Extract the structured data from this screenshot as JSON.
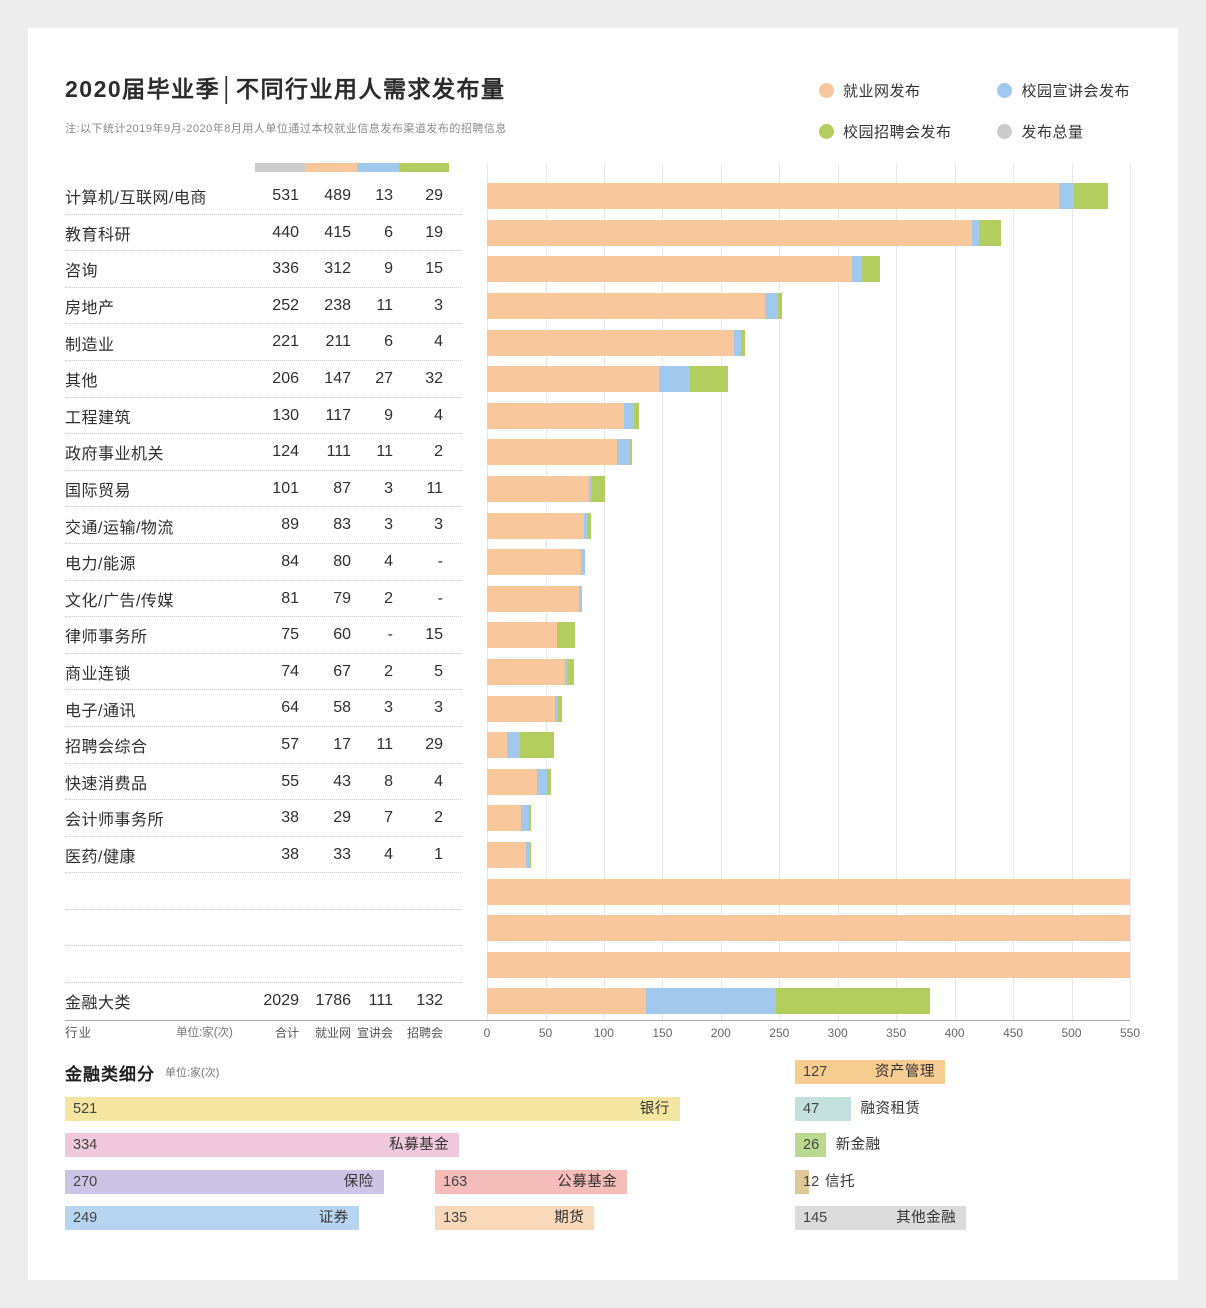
{
  "header": {
    "title": "2020届毕业季│不同行业用人需求发布量",
    "note": "注:以下统计2019年9月-2020年8月用人单位通过本校就业信息发布渠道发布的招聘信息"
  },
  "legend": {
    "items": [
      {
        "name": "web",
        "label": "就业网发布",
        "color": "#F8C89C"
      },
      {
        "name": "info",
        "label": "校园宣讲会发布",
        "color": "#A0C9ED"
      },
      {
        "name": "fair",
        "label": "校园招聘会发布",
        "color": "#B4CD5F"
      },
      {
        "name": "total",
        "label": "发布总量",
        "color": "#CBCBCB"
      }
    ]
  },
  "chart_data": {
    "type": "bar",
    "orientation": "horizontal",
    "stacked": true,
    "title": "不同行业用人需求发布量",
    "unit": "单位:家(次)",
    "axis": {
      "min": 0,
      "max": 550,
      "ticks": [
        0,
        50,
        100,
        150,
        200,
        250,
        300,
        350,
        400,
        450,
        500,
        550
      ],
      "grid": true
    },
    "colors": {
      "web": "#F8C89C",
      "info": "#A0C9ED",
      "fair": "#B4CD5F",
      "total": "#CBCBCB"
    },
    "columns": [
      "合计",
      "就业网",
      "宣讲会",
      "招聘会"
    ],
    "rows": [
      {
        "label": "计算机/互联网/电商",
        "total": 531,
        "web": 489,
        "info": 13,
        "fair": 29
      },
      {
        "label": "教育科研",
        "total": 440,
        "web": 415,
        "info": 6,
        "fair": 19
      },
      {
        "label": "咨询",
        "total": 336,
        "web": 312,
        "info": 9,
        "fair": 15
      },
      {
        "label": "房地产",
        "total": 252,
        "web": 238,
        "info": 11,
        "fair": 3
      },
      {
        "label": "制造业",
        "total": 221,
        "web": 211,
        "info": 6,
        "fair": 4
      },
      {
        "label": "其他",
        "total": 206,
        "web": 147,
        "info": 27,
        "fair": 32
      },
      {
        "label": "工程建筑",
        "total": 130,
        "web": 117,
        "info": 9,
        "fair": 4
      },
      {
        "label": "政府事业机关",
        "total": 124,
        "web": 111,
        "info": 11,
        "fair": 2
      },
      {
        "label": "国际贸易",
        "total": 101,
        "web": 87,
        "info": 3,
        "fair": 11
      },
      {
        "label": "交通/运输/物流",
        "total": 89,
        "web": 83,
        "info": 3,
        "fair": 3
      },
      {
        "label": "电力/能源",
        "total": 84,
        "web": 80,
        "info": 4,
        "fair": "-"
      },
      {
        "label": "文化/广告/传媒",
        "total": 81,
        "web": 79,
        "info": 2,
        "fair": "-"
      },
      {
        "label": "律师事务所",
        "total": 75,
        "web": 60,
        "info": "-",
        "fair": 15
      },
      {
        "label": "商业连锁",
        "total": 74,
        "web": 67,
        "info": 2,
        "fair": 5
      },
      {
        "label": "电子/通讯",
        "total": 64,
        "web": 58,
        "info": 3,
        "fair": 3
      },
      {
        "label": "招聘会综合",
        "total": 57,
        "web": 17,
        "info": 11,
        "fair": 29
      },
      {
        "label": "快速消费品",
        "total": 55,
        "web": 43,
        "info": 8,
        "fair": 4
      },
      {
        "label": "会计师事务所",
        "total": 38,
        "web": 29,
        "info": 7,
        "fair": 2
      },
      {
        "label": "医药/健康",
        "total": 38,
        "web": 33,
        "info": 4,
        "fair": 1
      }
    ],
    "finance_row": {
      "label": "金融大类",
      "total": 2029,
      "web": 1786,
      "info": 111,
      "fair": 132
    }
  },
  "footer": {
    "industry": "行业",
    "unit": "单位:家(次)",
    "columns": [
      "合计",
      "就业网",
      "宣讲会",
      "招聘会"
    ]
  },
  "subdivision_chart": {
    "type": "bar",
    "title": "金融类细分",
    "unit": "单位:家(次)",
    "items": [
      {
        "label": "资产管理",
        "value": 127,
        "color": "#F6CC90",
        "col": 2,
        "row": 0,
        "label_outside": false
      },
      {
        "label": "银行",
        "value": 521,
        "color": "#F4E5A1",
        "col": 0,
        "row": 1,
        "label_outside": false
      },
      {
        "label": "融资租赁",
        "value": 47,
        "color": "#C4E0DC",
        "col": 2,
        "row": 1,
        "label_outside": true
      },
      {
        "label": "私募基金",
        "value": 334,
        "color": "#F0C8DB",
        "col": 0,
        "row": 2,
        "label_outside": false
      },
      {
        "label": "新金融",
        "value": 26,
        "color": "#BAD88E",
        "col": 2,
        "row": 2,
        "label_outside": true
      },
      {
        "label": "保险",
        "value": 270,
        "color": "#CBC4E4",
        "col": 0,
        "row": 3,
        "label_outside": false
      },
      {
        "label": "公募基金",
        "value": 163,
        "color": "#F5BCBA",
        "col": 1,
        "row": 3,
        "label_outside": false
      },
      {
        "label": "信托",
        "value": 12,
        "color": "#DFC897",
        "col": 2,
        "row": 3,
        "label_outside": true
      },
      {
        "label": "证券",
        "value": 249,
        "color": "#B7D5F0",
        "col": 0,
        "row": 4,
        "label_outside": false
      },
      {
        "label": "期货",
        "value": 135,
        "color": "#F9D8BA",
        "col": 1,
        "row": 4,
        "label_outside": false
      },
      {
        "label": "其他金融",
        "value": 145,
        "color": "#DBDBDB",
        "col": 2,
        "row": 4,
        "label_outside": false
      }
    ]
  }
}
